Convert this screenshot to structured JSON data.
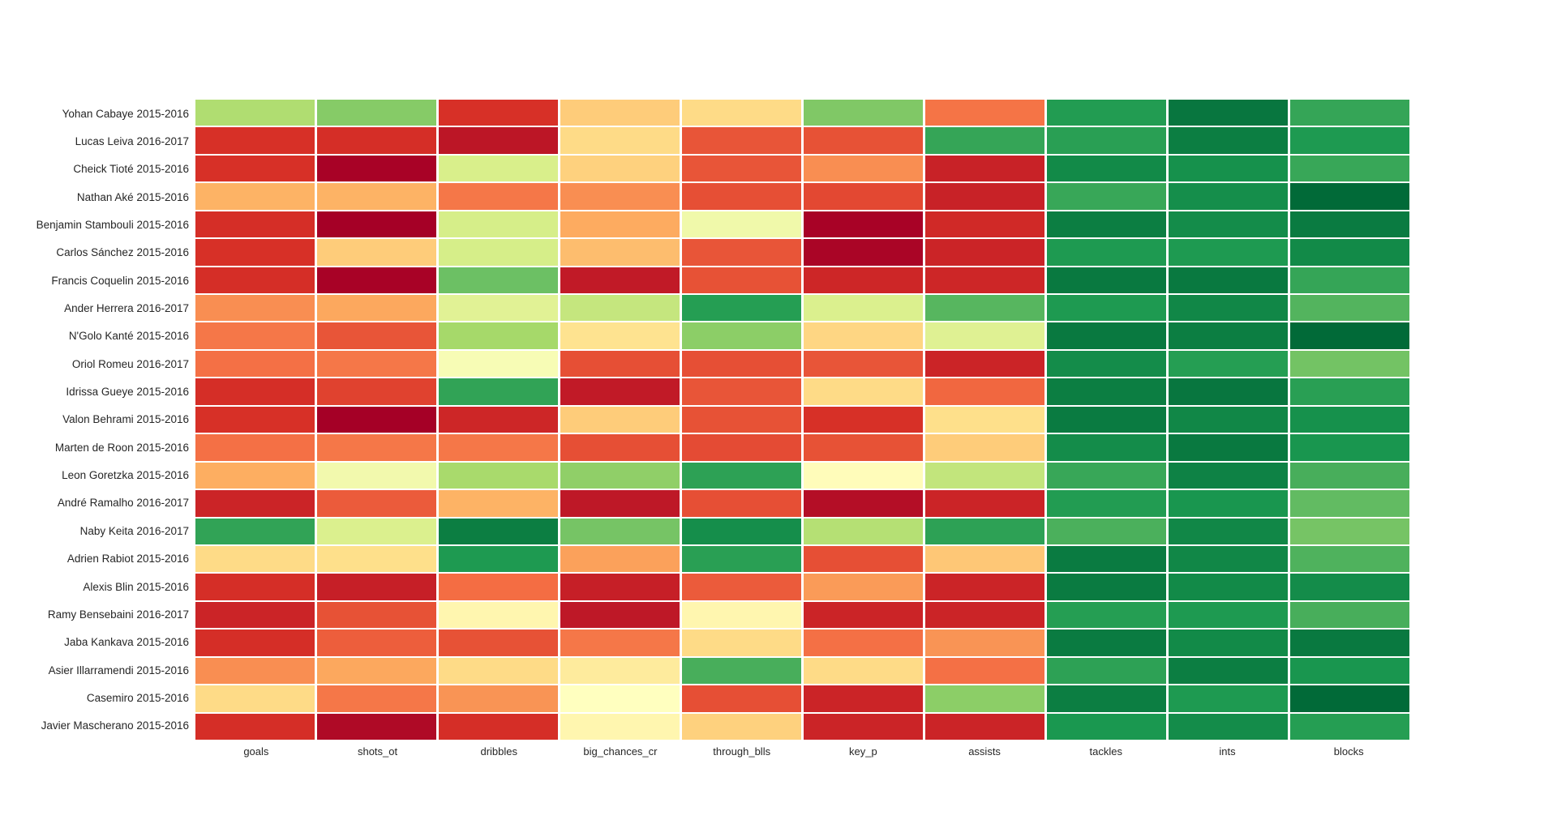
{
  "chart_data": {
    "type": "heatmap",
    "title": "",
    "xlabel": "",
    "ylabel": "",
    "legend": "none",
    "colormap": "RdYlGn",
    "colormap_anchors": [
      "#a50026",
      "#d73027",
      "#f46d43",
      "#fdae61",
      "#fee08b",
      "#ffffbf",
      "#d9ef8b",
      "#a6d96a",
      "#66bd63",
      "#1a9850",
      "#006837"
    ],
    "grid_gap_color": "#ffffff",
    "value_range": [
      0,
      1
    ],
    "columns": [
      "goals",
      "shots_ot",
      "dribbles",
      "big_chances_cr",
      "through_blls",
      "key_p",
      "assists",
      "tackles",
      "ints",
      "blocks"
    ],
    "rows": [
      "Yohan Cabaye 2015-2016",
      "Lucas Leiva 2016-2017",
      "Cheick Tioté 2015-2016",
      "Nathan Aké 2015-2016",
      "Benjamin Stambouli 2015-2016",
      "Carlos Sánchez 2015-2016",
      "Francis Coquelin 2015-2016",
      "Ander Herrera 2016-2017",
      "N'Golo Kanté 2015-2016",
      "Oriol Romeu 2016-2017",
      "Idrissa Gueye 2015-2016",
      "Valon Behrami 2015-2016",
      "Marten de Roon 2015-2016",
      "Leon Goretzka 2015-2016",
      "André Ramalho 2016-2017",
      "Naby Keita 2016-2017",
      "Adrien Rabiot 2015-2016",
      "Alexis Blin 2015-2016",
      "Ramy Bensebaini 2016-2017",
      "Jaba Kankava 2015-2016",
      "Asier Illarramendi 2015-2016",
      "Casemiro 2015-2016",
      "Javier Mascherano 2015-2016"
    ],
    "values": [
      [
        0.68,
        0.75,
        0.1,
        0.36,
        0.39,
        0.76,
        0.21,
        0.89,
        0.97,
        0.865
      ],
      [
        0.1,
        0.095,
        0.045,
        0.39,
        0.16,
        0.155,
        0.865,
        0.88,
        0.955,
        0.895
      ],
      [
        0.1,
        0.005,
        0.6,
        0.37,
        0.16,
        0.25,
        0.07,
        0.93,
        0.915,
        0.86
      ],
      [
        0.31,
        0.31,
        0.215,
        0.25,
        0.15,
        0.14,
        0.07,
        0.86,
        0.92,
        0.995
      ],
      [
        0.095,
        0.0,
        0.605,
        0.295,
        0.54,
        0.005,
        0.085,
        0.955,
        0.925,
        0.96
      ],
      [
        0.1,
        0.36,
        0.605,
        0.33,
        0.16,
        0.01,
        0.075,
        0.895,
        0.895,
        0.93
      ],
      [
        0.095,
        0.005,
        0.79,
        0.055,
        0.155,
        0.08,
        0.08,
        0.965,
        0.965,
        0.865
      ],
      [
        0.25,
        0.29,
        0.58,
        0.64,
        0.885,
        0.595,
        0.82,
        0.895,
        0.935,
        0.825
      ],
      [
        0.215,
        0.16,
        0.7,
        0.41,
        0.74,
        0.38,
        0.585,
        0.965,
        0.955,
        0.995
      ],
      [
        0.205,
        0.215,
        0.52,
        0.15,
        0.15,
        0.16,
        0.075,
        0.925,
        0.885,
        0.78
      ],
      [
        0.095,
        0.13,
        0.87,
        0.055,
        0.16,
        0.39,
        0.19,
        0.955,
        0.97,
        0.88
      ],
      [
        0.1,
        0.0,
        0.08,
        0.36,
        0.155,
        0.1,
        0.4,
        0.96,
        0.935,
        0.915
      ],
      [
        0.205,
        0.215,
        0.215,
        0.15,
        0.145,
        0.155,
        0.36,
        0.925,
        0.965,
        0.905
      ],
      [
        0.3,
        0.535,
        0.695,
        0.735,
        0.875,
        0.49,
        0.645,
        0.86,
        0.945,
        0.84
      ],
      [
        0.075,
        0.17,
        0.31,
        0.05,
        0.15,
        0.03,
        0.075,
        0.89,
        0.905,
        0.805
      ],
      [
        0.87,
        0.595,
        0.955,
        0.775,
        0.92,
        0.67,
        0.875,
        0.835,
        0.935,
        0.775
      ],
      [
        0.39,
        0.4,
        0.895,
        0.28,
        0.88,
        0.15,
        0.35,
        0.96,
        0.935,
        0.83
      ],
      [
        0.095,
        0.065,
        0.2,
        0.065,
        0.17,
        0.27,
        0.075,
        0.96,
        0.93,
        0.925
      ],
      [
        0.075,
        0.155,
        0.47,
        0.05,
        0.47,
        0.075,
        0.075,
        0.885,
        0.895,
        0.84
      ],
      [
        0.095,
        0.175,
        0.155,
        0.215,
        0.39,
        0.205,
        0.26,
        0.96,
        0.93,
        0.965
      ],
      [
        0.25,
        0.29,
        0.39,
        0.435,
        0.84,
        0.39,
        0.205,
        0.875,
        0.955,
        0.905
      ],
      [
        0.39,
        0.215,
        0.26,
        0.5,
        0.15,
        0.075,
        0.74,
        0.955,
        0.895,
        0.995
      ],
      [
        0.095,
        0.02,
        0.095,
        0.47,
        0.37,
        0.075,
        0.075,
        0.9,
        0.925,
        0.885
      ]
    ]
  }
}
